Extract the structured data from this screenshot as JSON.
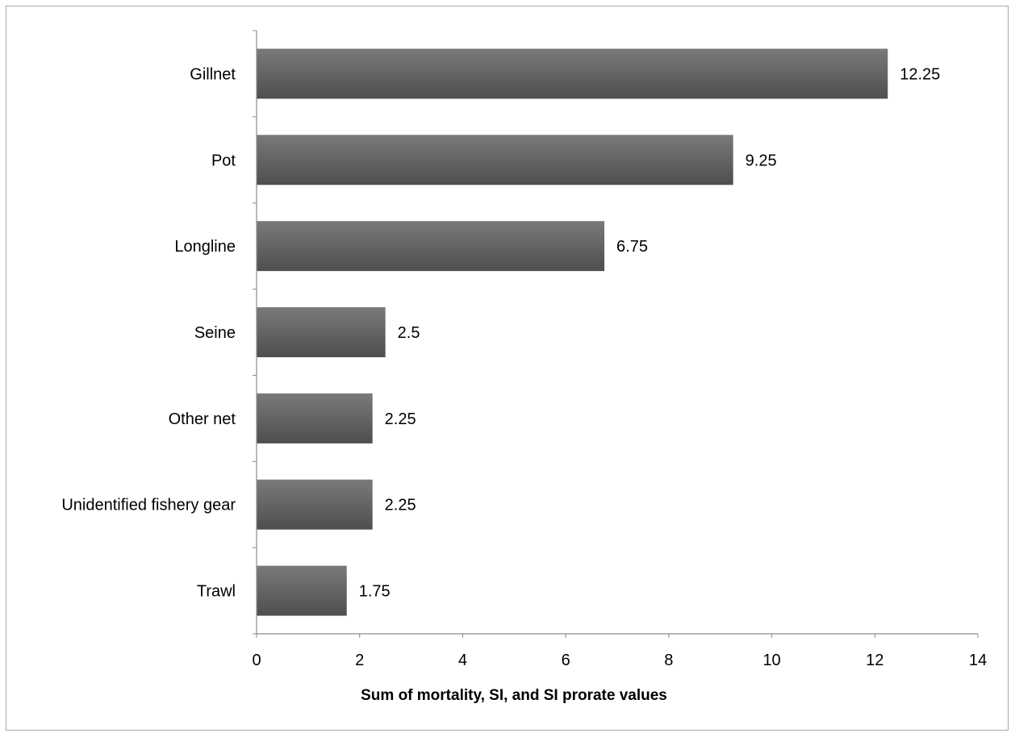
{
  "chart_data": {
    "type": "bar",
    "orientation": "horizontal",
    "categories": [
      "Gillnet",
      "Pot",
      "Longline",
      "Seine",
      "Other net",
      "Unidentified fishery gear",
      "Trawl"
    ],
    "values": [
      12.25,
      9.25,
      6.75,
      2.5,
      2.25,
      2.25,
      1.75
    ],
    "data_labels": [
      "12.25",
      "9.25",
      "6.75",
      "2.5",
      "2.25",
      "2.25",
      "1.75"
    ],
    "title": "",
    "xlabel": "Sum of mortality, SI, and SI prorate values",
    "ylabel": "",
    "xlim": [
      0,
      14
    ],
    "xticks": [
      0,
      2,
      4,
      6,
      8,
      10,
      12,
      14
    ],
    "xtick_labels": [
      "0",
      "2",
      "4",
      "6",
      "8",
      "10",
      "12",
      "14"
    ],
    "grid": false,
    "legend": "none",
    "bar_color": "#5f5f5f",
    "bar_gradient_top": "#7a7a7a",
    "bar_gradient_bottom": "#4e4e4e"
  }
}
